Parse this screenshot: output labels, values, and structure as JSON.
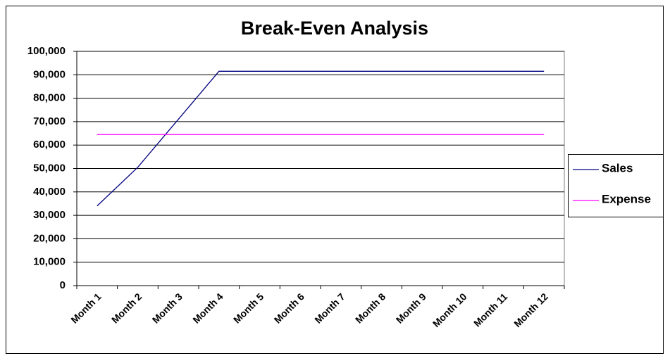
{
  "chart_data": {
    "type": "line",
    "title": "Break-Even Analysis",
    "categories": [
      "Month 1",
      "Month 2",
      "Month 3",
      "Month 4",
      "Month 5",
      "Month 6",
      "Month 7",
      "Month 8",
      "Month 9",
      "Month 10",
      "Month 11",
      "Month 12"
    ],
    "series": [
      {
        "name": "Sales",
        "color": "#000080",
        "values": [
          34000,
          50500,
          71000,
          91500,
          91500,
          91500,
          91500,
          91500,
          91500,
          91500,
          91500,
          91500
        ]
      },
      {
        "name": "Expense",
        "color": "#ff00ff",
        "values": [
          64500,
          64500,
          64500,
          64500,
          64500,
          64500,
          64500,
          64500,
          64500,
          64500,
          64500,
          64500
        ]
      }
    ],
    "ylim": [
      0,
      100000
    ],
    "yticks": [
      0,
      {
        "value": 10000,
        "label": "10,000"
      },
      {
        "value": 20000,
        "label": "20,000"
      },
      {
        "value": 30000,
        "label": "30,000"
      },
      {
        "value": 40000,
        "label": "40,000"
      },
      {
        "value": 50000,
        "label": "50,000"
      },
      {
        "value": 60000,
        "label": "60,000"
      },
      {
        "value": 70000,
        "label": "70,000"
      },
      {
        "value": 80000,
        "label": "80,000"
      },
      {
        "value": 90000,
        "label": "90,000"
      },
      {
        "value": 100000,
        "label": "100,000"
      }
    ],
    "grid": true,
    "legend": "right"
  }
}
